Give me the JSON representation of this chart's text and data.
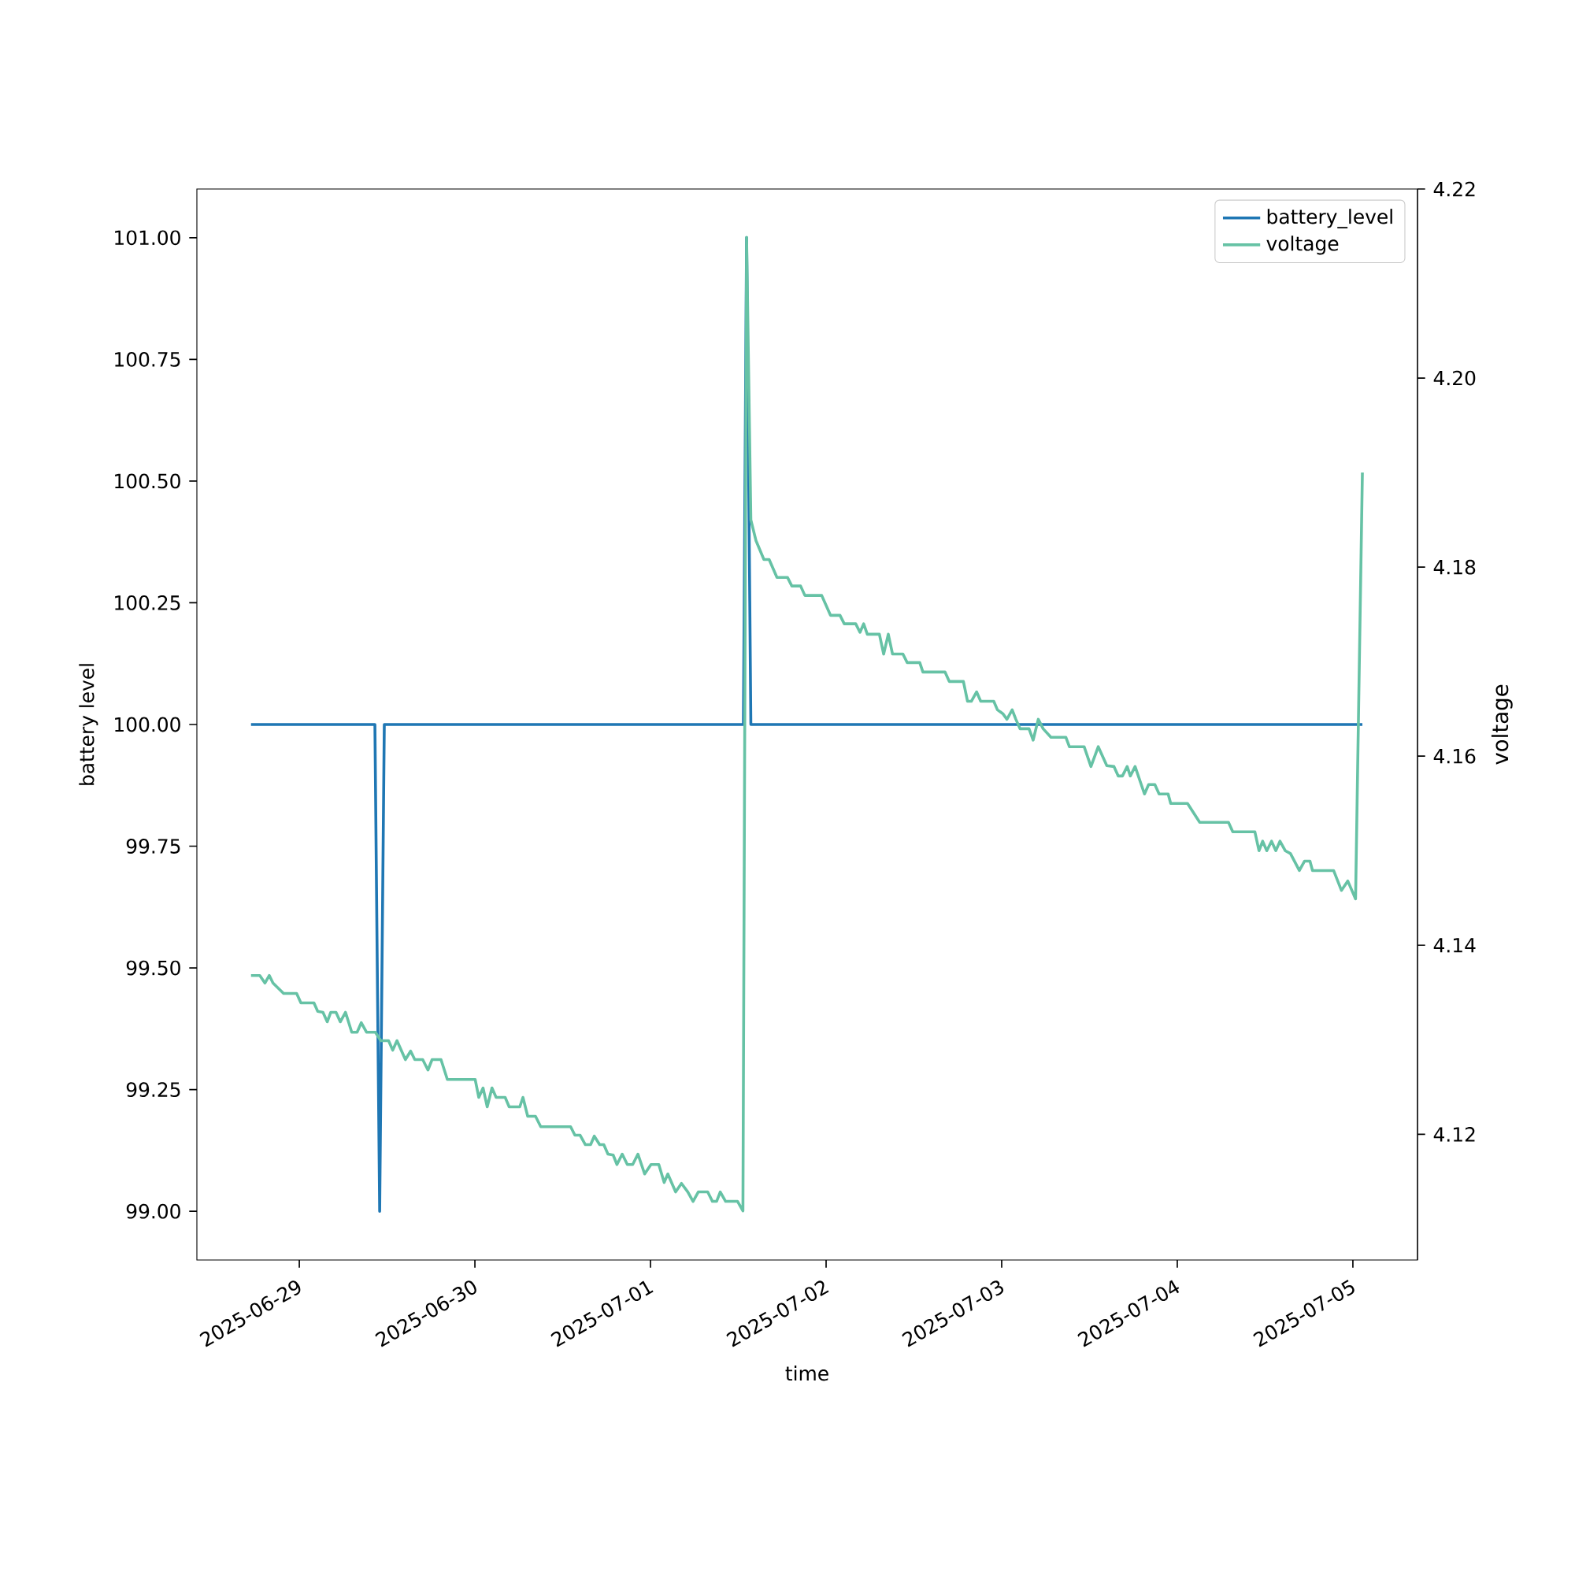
{
  "chart_data": {
    "type": "line",
    "xlabel": "time",
    "ylabel": "battery level",
    "y2label": "voltage",
    "xlim": [
      "2025-06-28T10:00",
      "2025-07-05T08:50"
    ],
    "xticks": [
      "2025-06-29",
      "2025-06-30",
      "2025-07-01",
      "2025-07-02",
      "2025-07-03",
      "2025-07-04",
      "2025-07-05"
    ],
    "ylim": [
      98.9,
      101.1
    ],
    "yticks": [
      {
        "value": 99,
        "label": "99.00"
      },
      {
        "value": 99.25,
        "label": "99.25"
      },
      {
        "value": 99.5,
        "label": "99.50"
      },
      {
        "value": 99.75,
        "label": "99.75"
      },
      {
        "value": 100,
        "label": "100.00"
      },
      {
        "value": 100.25,
        "label": "100.25"
      },
      {
        "value": 100.5,
        "label": "100.50"
      },
      {
        "value": 100.75,
        "label": "100.75"
      },
      {
        "value": 101,
        "label": "101.00"
      }
    ],
    "y2lim": [
      4.1067,
      4.22
    ],
    "y2ticks": [
      {
        "value": 4.12,
        "label": "4.12"
      },
      {
        "value": 4.14,
        "label": "4.14"
      },
      {
        "value": 4.16,
        "label": "4.16"
      },
      {
        "value": 4.18,
        "label": "4.18"
      },
      {
        "value": 4.2,
        "label": "4.20"
      },
      {
        "value": 4.22,
        "label": "4.22"
      }
    ],
    "legend": "top right",
    "marker": "none",
    "line_style": "solid",
    "series": [
      {
        "name": "battery_level",
        "color": "#1f77b4",
        "x": [
          "2025-06-28T17:24",
          "2025-06-29T10:20",
          "2025-06-29T10:59",
          "2025-06-29T11:37",
          "2025-07-01T12:42",
          "2025-07-01T13:08",
          "2025-07-01T13:43",
          "2025-07-05T01:18"
        ],
        "values": [
          100,
          100,
          99,
          100,
          100,
          101,
          100,
          100
        ]
      },
      {
        "name": "voltage",
        "color": "#66c2a5",
        "axis": "y2",
        "x": [
          "2025-06-28T17:24",
          "2025-06-28T18:36",
          "2025-06-28T19:18",
          "2025-06-28T19:54",
          "2025-06-28T20:24",
          "2025-06-28T21:51",
          "2025-06-28T23:38",
          "2025-06-29T00:13",
          "2025-06-29T02:00",
          "2025-06-29T02:31",
          "2025-06-29T03:14",
          "2025-06-29T03:49",
          "2025-06-29T04:18",
          "2025-06-29T05:01",
          "2025-06-29T05:36",
          "2025-06-29T06:19",
          "2025-06-29T07:10",
          "2025-06-29T07:54",
          "2025-06-29T08:28",
          "2025-06-29T09:11",
          "2025-06-29T10:24",
          "2025-06-29T11:08",
          "2025-06-29T12:12",
          "2025-06-29T12:46",
          "2025-06-29T13:21",
          "2025-06-29T14:30",
          "2025-06-29T15:13",
          "2025-06-29T15:47",
          "2025-06-29T16:52",
          "2025-06-29T17:35",
          "2025-06-29T18:09",
          "2025-06-29T19:22",
          "2025-06-29T20:14",
          "2025-06-30T00:02",
          "2025-06-30T00:32",
          "2025-06-30T01:07",
          "2025-06-30T01:41",
          "2025-06-30T02:20",
          "2025-06-30T02:54",
          "2025-06-30T04:08",
          "2025-06-30T04:41",
          "2025-06-30T06:08",
          "2025-06-30T06:34",
          "2025-06-30T07:13",
          "2025-06-30T08:17",
          "2025-06-30T09:00",
          "2025-06-30T13:05",
          "2025-06-30T13:40",
          "2025-06-30T14:23",
          "2025-06-30T15:06",
          "2025-06-30T15:49",
          "2025-06-30T16:19",
          "2025-06-30T17:03",
          "2025-06-30T17:37",
          "2025-06-30T18:11",
          "2025-06-30T18:54",
          "2025-06-30T19:25",
          "2025-06-30T20:08",
          "2025-06-30T20:50",
          "2025-06-30T21:34",
          "2025-06-30T22:17",
          "2025-06-30T23:12",
          "2025-07-01T00:04",
          "2025-07-01T01:08",
          "2025-07-01T01:52",
          "2025-07-01T02:22",
          "2025-07-01T03:26",
          "2025-07-01T04:14",
          "2025-07-01T05:06",
          "2025-07-01T05:49",
          "2025-07-01T06:32",
          "2025-07-01T07:49",
          "2025-07-01T08:28",
          "2025-07-01T09:02",
          "2025-07-01T09:32",
          "2025-07-01T10:16",
          "2025-07-01T11:54",
          "2025-07-01T12:38",
          "2025-07-01T13:08",
          "2025-07-01T13:43",
          "2025-07-01T14:25",
          "2025-07-01T15:30",
          "2025-07-01T16:13",
          "2025-07-01T17:17",
          "2025-07-01T18:44",
          "2025-07-01T19:19",
          "2025-07-01T20:31",
          "2025-07-01T21:06",
          "2025-07-01T23:24",
          "2025-07-02T00:36",
          "2025-07-02T01:54",
          "2025-07-02T02:29",
          "2025-07-02T04:03",
          "2025-07-02T04:38",
          "2025-07-02T05:08",
          "2025-07-02T05:38",
          "2025-07-02T07:17",
          "2025-07-02T07:52",
          "2025-07-02T08:30",
          "2025-07-02T09:05",
          "2025-07-02T10:30",
          "2025-07-02T11:05",
          "2025-07-02T12:48",
          "2025-07-02T13:14",
          "2025-07-02T16:15",
          "2025-07-02T16:50",
          "2025-07-02T18:46",
          "2025-07-02T19:20",
          "2025-07-02T19:51",
          "2025-07-02T20:34",
          "2025-07-02T21:08",
          "2025-07-02T22:55",
          "2025-07-02T23:25",
          "2025-07-03T00:09",
          "2025-07-03T00:43",
          "2025-07-03T01:26",
          "2025-07-03T01:56",
          "2025-07-03T02:31",
          "2025-07-03T03:44",
          "2025-07-03T04:18",
          "2025-07-03T05:00",
          "2025-07-03T05:40",
          "2025-07-03T06:44",
          "2025-07-03T08:46",
          "2025-07-03T09:15",
          "2025-07-03T11:16",
          "2025-07-03T12:12",
          "2025-07-03T13:12",
          "2025-07-03T14:22",
          "2025-07-03T15:21",
          "2025-07-03T15:56",
          "2025-07-03T16:30",
          "2025-07-03T17:09",
          "2025-07-03T17:35",
          "2025-07-03T18:14",
          "2025-07-03T19:31",
          "2025-07-03T20:05",
          "2025-07-03T20:56",
          "2025-07-03T21:31",
          "2025-07-03T22:45",
          "2025-07-03T23:06",
          "2025-07-04T01:24",
          "2025-07-04T03:04",
          "2025-07-04T07:00",
          "2025-07-04T07:35",
          "2025-07-04T10:36",
          "2025-07-04T11:10",
          "2025-07-04T11:40",
          "2025-07-04T12:14",
          "2025-07-04T12:53",
          "2025-07-04T13:28",
          "2025-07-04T14:02",
          "2025-07-04T14:45",
          "2025-07-04T15:28",
          "2025-07-04T16:41",
          "2025-07-04T17:24",
          "2025-07-04T18:08",
          "2025-07-04T18:29",
          "2025-07-04T21:22",
          "2025-07-04T22:26",
          "2025-07-04T23:18",
          "2025-07-05T00:22",
          "2025-07-05T01:18"
        ],
        "values": [
          4.1368,
          4.1368,
          4.136,
          4.1368,
          4.136,
          4.1349,
          4.1349,
          4.1339,
          4.1339,
          4.133,
          4.1329,
          4.1319,
          4.1329,
          4.1329,
          4.1319,
          4.1329,
          4.1308,
          4.1308,
          4.1318,
          4.1308,
          4.1308,
          4.1299,
          4.1299,
          4.1289,
          4.1299,
          4.1279,
          4.1288,
          4.1279,
          4.1279,
          4.1268,
          4.1279,
          4.1279,
          4.1258,
          4.1258,
          4.1239,
          4.1249,
          4.1229,
          4.1249,
          4.1239,
          4.1239,
          4.1229,
          4.1229,
          4.1239,
          4.1219,
          4.1219,
          4.1208,
          4.1208,
          4.1199,
          4.1199,
          4.1189,
          4.1189,
          4.1198,
          4.1189,
          4.1189,
          4.1179,
          4.1178,
          4.1168,
          4.1179,
          4.1168,
          4.1168,
          4.1179,
          4.1158,
          4.1168,
          4.1168,
          4.1149,
          4.1158,
          4.1139,
          4.1148,
          4.1139,
          4.1129,
          4.1139,
          4.1139,
          4.1129,
          4.1129,
          4.1139,
          4.1129,
          4.1129,
          4.1119,
          4.2149,
          4.185,
          4.1828,
          4.1808,
          4.1808,
          4.1789,
          4.1789,
          4.178,
          4.178,
          4.177,
          4.177,
          4.1749,
          4.1749,
          4.174,
          4.174,
          4.1731,
          4.174,
          4.1729,
          4.1729,
          4.1708,
          4.1729,
          4.1708,
          4.1708,
          4.1699,
          4.1699,
          4.1689,
          4.1689,
          4.1679,
          4.1679,
          4.1658,
          4.1658,
          4.1668,
          4.1658,
          4.1658,
          4.1649,
          4.1645,
          4.1639,
          4.1649,
          4.1639,
          4.1629,
          4.1629,
          4.1617,
          4.1639,
          4.1629,
          4.162,
          4.162,
          4.161,
          4.161,
          4.1589,
          4.161,
          4.159,
          4.1589,
          4.1579,
          4.1579,
          4.1589,
          4.1579,
          4.1589,
          4.156,
          4.157,
          4.157,
          4.156,
          4.156,
          4.155,
          4.155,
          4.153,
          4.153,
          4.152,
          4.152,
          4.15,
          4.151,
          4.15,
          4.151,
          4.15,
          4.151,
          4.15,
          4.1497,
          4.1479,
          4.1489,
          4.1489,
          4.1479,
          4.1479,
          4.1458,
          4.1468,
          4.1449,
          4.19
        ]
      }
    ]
  }
}
